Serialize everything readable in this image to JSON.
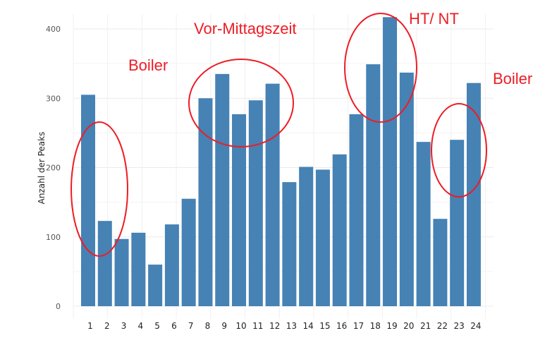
{
  "chart_data": {
    "type": "bar",
    "title": "",
    "xlabel": "",
    "ylabel": "Anzahl der Peaks",
    "ylim": [
      0,
      420
    ],
    "yticks": [
      0,
      100,
      200,
      300,
      400
    ],
    "grid": true,
    "bar_color": "#4682b4",
    "annotation_color": "#ee1c25",
    "categories": [
      "1",
      "2",
      "3",
      "4",
      "5",
      "6",
      "7",
      "8",
      "9",
      "10",
      "11",
      "12",
      "13",
      "14",
      "15",
      "16",
      "17",
      "18",
      "19",
      "20",
      "21",
      "22",
      "23",
      "24"
    ],
    "values": [
      305,
      123,
      97,
      106,
      60,
      118,
      155,
      300,
      335,
      277,
      297,
      321,
      179,
      201,
      197,
      219,
      277,
      349,
      417,
      337,
      237,
      126,
      240,
      322
    ],
    "annotations": [
      {
        "label": "Boiler",
        "categories": [
          "1"
        ]
      },
      {
        "label": "Vor-Mittagszeit",
        "categories": [
          "8",
          "9",
          "10",
          "11",
          "12"
        ]
      },
      {
        "label": "HT/ NT",
        "categories": [
          "18",
          "19",
          "20"
        ]
      },
      {
        "label": "Boiler",
        "categories": [
          "23",
          "24"
        ]
      }
    ]
  }
}
